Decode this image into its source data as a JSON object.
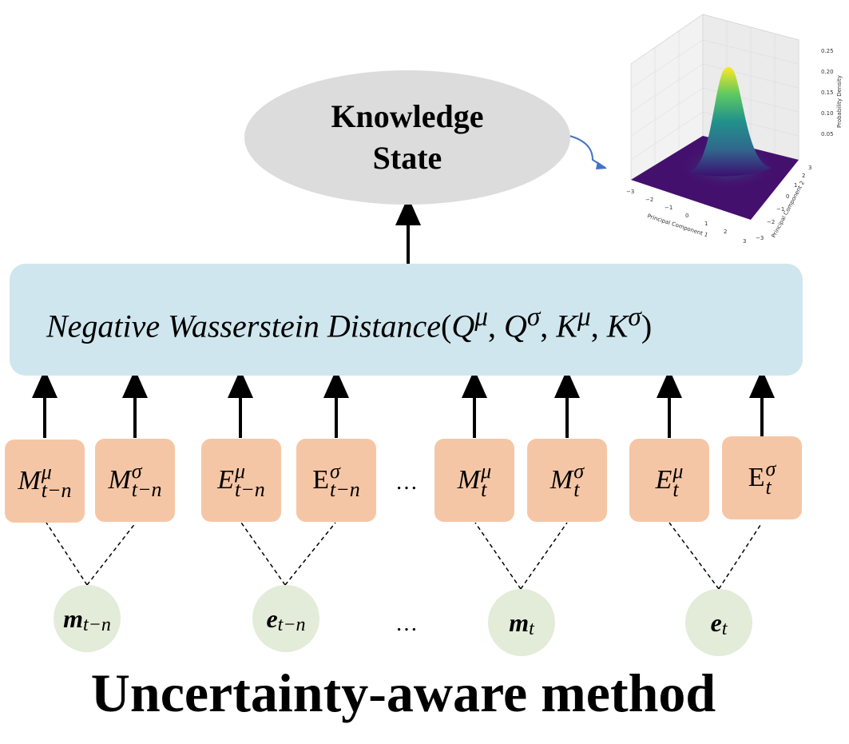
{
  "knowledge_state": {
    "line1": "Knowledge",
    "line2": "State"
  },
  "distance": {
    "text": "Negative Wasserstein Distance",
    "args": "(Q",
    "sep": ", ",
    "q_mu": "μ",
    "q_sigma": "σ",
    "k_mu": "μ",
    "k_sigma": "σ",
    "q": "Q",
    "k": "K",
    "close": ")"
  },
  "embeddings": [
    {
      "base": "M",
      "sup": "μ",
      "sub": "t−n"
    },
    {
      "base": "M",
      "sup": "σ",
      "sub": "t−n"
    },
    {
      "base": "E",
      "sup": "μ",
      "sub": "t−n"
    },
    {
      "base": "E",
      "sup": "σ",
      "sub": "t−n"
    },
    {
      "base": "M",
      "sup": "μ",
      "sub": "t"
    },
    {
      "base": "M",
      "sup": "σ",
      "sub": "t"
    },
    {
      "base": "E",
      "sup": "μ",
      "sub": "t"
    },
    {
      "base": "E",
      "sup": "σ",
      "sub": "t"
    }
  ],
  "inputs": [
    {
      "base": "m",
      "sub": "t−n"
    },
    {
      "base": "e",
      "sub": "t−n"
    },
    {
      "base": "m",
      "sub": "t"
    },
    {
      "base": "e",
      "sub": "t"
    }
  ],
  "ellipsis": "…",
  "title": "Uncertainty-aware method",
  "plot": {
    "zlabel": "Probability Density",
    "xlabel": "Principal Component 1",
    "ylabel": "Principal Component 2",
    "z_ticks": [
      "0.05",
      "0.10",
      "0.15",
      "0.20",
      "0.25"
    ],
    "x_ticks": [
      "−3",
      "−2",
      "−1",
      "0",
      "1",
      "2",
      "3"
    ],
    "y_ticks": [
      "−3",
      "−2",
      "−1",
      "0",
      "1",
      "2",
      "3"
    ],
    "colormap_low": "#3b0f70",
    "colormap_high": "#fde725"
  },
  "colors": {
    "ellipse": "#dcdcdc",
    "distance_box": "#cfe6ee",
    "embedding": "#f5c6a6",
    "input_node": "#e2ecd8"
  }
}
